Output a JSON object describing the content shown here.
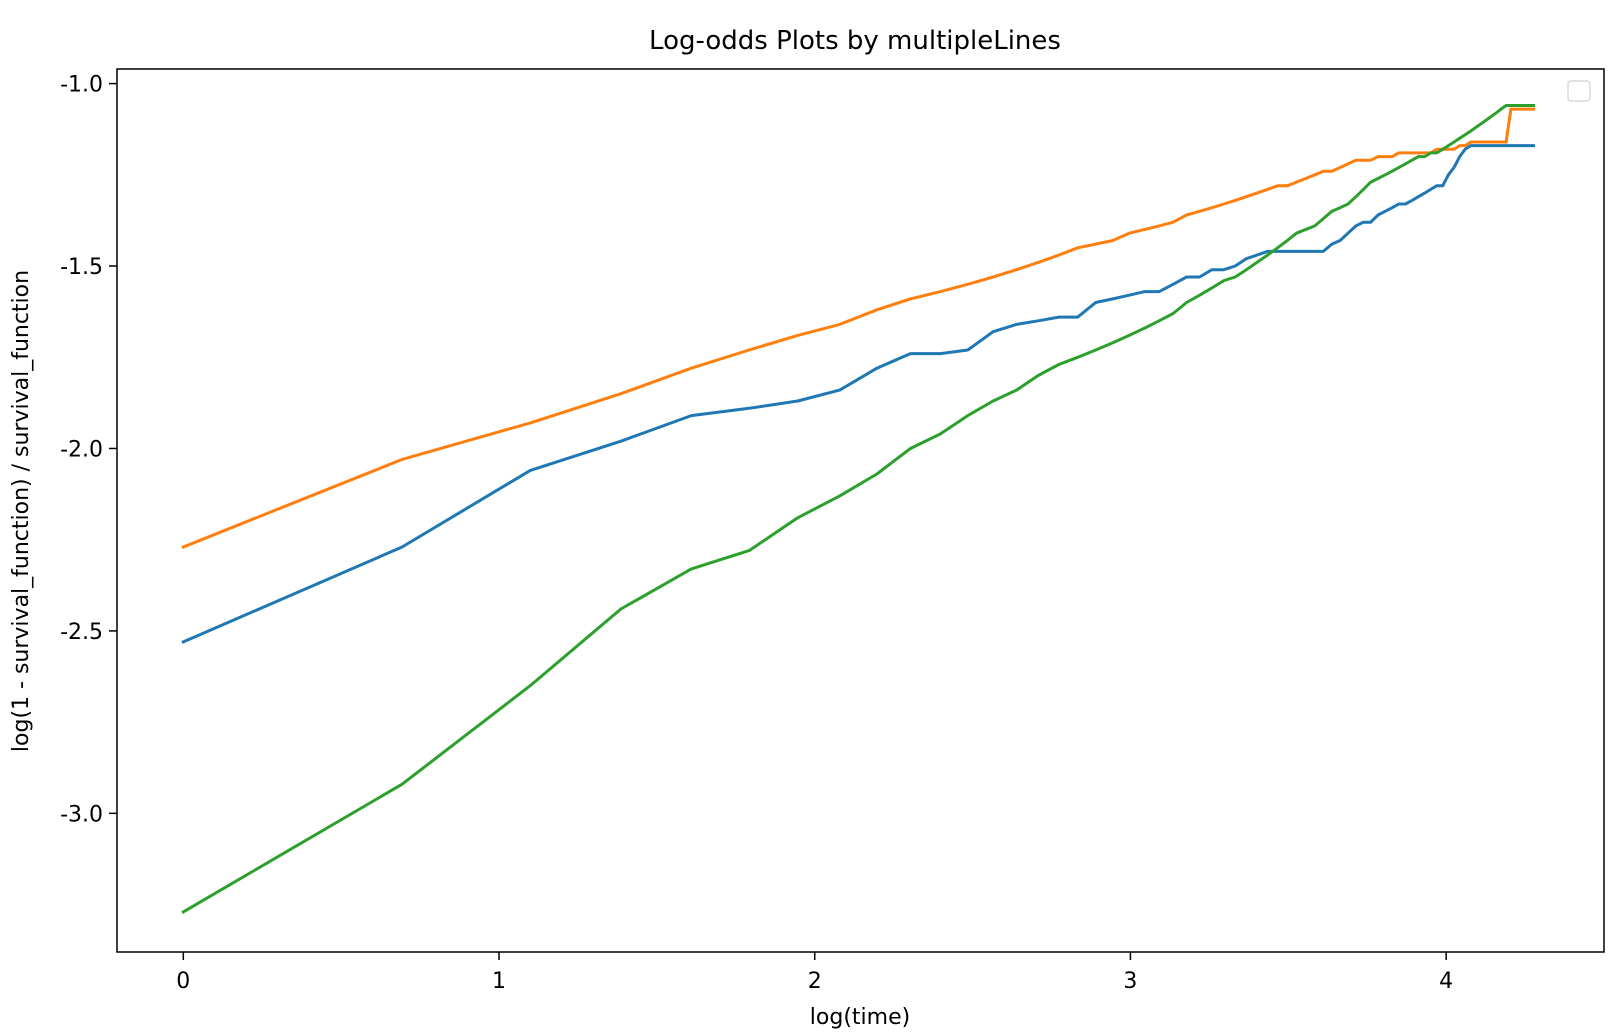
{
  "chart_data": {
    "type": "line",
    "title": "Log-odds Plots by multipleLines",
    "xlabel": "log(time)",
    "ylabel": "log(1 - survival_function) / survival_function",
    "xlim": [
      -0.21,
      4.5
    ],
    "ylim": [
      -3.38,
      -0.96
    ],
    "xticks": [
      0,
      1,
      2,
      3,
      4
    ],
    "xtick_labels": [
      "0",
      "1",
      "2",
      "3",
      "4"
    ],
    "yticks": [
      -1.0,
      -1.5,
      -2.0,
      -2.5,
      -3.0
    ],
    "ytick_labels": [
      "-1.0",
      "-1.5",
      "-2.0",
      "-2.5",
      "-3.0"
    ],
    "grid": false,
    "legend": {
      "placement": "upper right",
      "entries": []
    },
    "series": [
      {
        "color": "#1f77b4",
        "x": [
          0,
          0.693,
          1.099,
          1.386,
          1.609,
          1.792,
          1.946,
          2.079,
          2.197,
          2.303,
          2.398,
          2.485,
          2.565,
          2.639,
          2.708,
          2.773,
          2.833,
          2.89,
          2.944,
          2.996,
          3.045,
          3.091,
          3.135,
          3.178,
          3.219,
          3.258,
          3.296,
          3.332,
          3.367,
          3.401,
          3.434,
          3.466,
          3.497,
          3.526,
          3.555,
          3.584,
          3.611,
          3.638,
          3.664,
          3.689,
          3.714,
          3.738,
          3.761,
          3.784,
          3.807,
          3.829,
          3.85,
          3.871,
          3.892,
          3.912,
          3.932,
          3.951,
          3.97,
          3.989,
          4.007,
          4.025,
          4.043,
          4.06,
          4.078,
          4.094,
          4.111,
          4.127,
          4.143,
          4.159,
          4.174,
          4.19,
          4.205,
          4.22,
          4.234,
          4.248,
          4.263,
          4.277
        ],
        "y": [
          -2.53,
          -2.27,
          -2.06,
          -1.98,
          -1.91,
          -1.89,
          -1.87,
          -1.84,
          -1.78,
          -1.74,
          -1.74,
          -1.73,
          -1.68,
          -1.66,
          -1.65,
          -1.64,
          -1.64,
          -1.6,
          -1.59,
          -1.58,
          -1.57,
          -1.57,
          -1.55,
          -1.53,
          -1.53,
          -1.51,
          -1.51,
          -1.5,
          -1.48,
          -1.47,
          -1.46,
          -1.46,
          -1.46,
          -1.46,
          -1.46,
          -1.46,
          -1.46,
          -1.44,
          -1.43,
          -1.41,
          -1.39,
          -1.38,
          -1.38,
          -1.36,
          -1.35,
          -1.34,
          -1.33,
          -1.33,
          -1.32,
          -1.31,
          -1.3,
          -1.29,
          -1.28,
          -1.28,
          -1.25,
          -1.23,
          -1.2,
          -1.18,
          -1.17,
          -1.17,
          -1.17,
          -1.17,
          -1.17,
          -1.17,
          -1.17,
          -1.17,
          -1.17,
          -1.17,
          -1.17,
          -1.17,
          -1.17,
          -1.17
        ]
      },
      {
        "color": "#ff7f0e",
        "x": [
          0,
          0.693,
          1.099,
          1.386,
          1.609,
          1.792,
          1.946,
          2.079,
          2.197,
          2.303,
          2.398,
          2.485,
          2.565,
          2.639,
          2.708,
          2.773,
          2.833,
          2.89,
          2.944,
          2.996,
          3.045,
          3.091,
          3.135,
          3.178,
          3.219,
          3.258,
          3.296,
          3.332,
          3.367,
          3.401,
          3.434,
          3.466,
          3.497,
          3.526,
          3.555,
          3.584,
          3.611,
          3.638,
          3.664,
          3.689,
          3.714,
          3.738,
          3.761,
          3.784,
          3.807,
          3.829,
          3.85,
          3.871,
          3.892,
          3.912,
          3.932,
          3.951,
          3.97,
          3.989,
          4.007,
          4.025,
          4.043,
          4.06,
          4.078,
          4.094,
          4.111,
          4.127,
          4.143,
          4.159,
          4.174,
          4.19,
          4.205,
          4.22,
          4.234,
          4.248,
          4.263,
          4.277
        ],
        "y": [
          -2.27,
          -2.03,
          -1.93,
          -1.85,
          -1.78,
          -1.73,
          -1.69,
          -1.66,
          -1.62,
          -1.59,
          -1.57,
          -1.55,
          -1.53,
          -1.51,
          -1.49,
          -1.47,
          -1.45,
          -1.44,
          -1.43,
          -1.41,
          -1.4,
          -1.39,
          -1.38,
          -1.36,
          -1.35,
          -1.34,
          -1.33,
          -1.32,
          -1.31,
          -1.3,
          -1.29,
          -1.28,
          -1.28,
          -1.27,
          -1.26,
          -1.25,
          -1.24,
          -1.24,
          -1.23,
          -1.22,
          -1.21,
          -1.21,
          -1.21,
          -1.2,
          -1.2,
          -1.2,
          -1.19,
          -1.19,
          -1.19,
          -1.19,
          -1.19,
          -1.19,
          -1.18,
          -1.18,
          -1.18,
          -1.18,
          -1.17,
          -1.17,
          -1.16,
          -1.16,
          -1.16,
          -1.16,
          -1.16,
          -1.16,
          -1.16,
          -1.16,
          -1.07,
          -1.07,
          -1.07,
          -1.07,
          -1.07,
          -1.07
        ]
      },
      {
        "color": "#2ca02c",
        "x": [
          0,
          0.693,
          1.099,
          1.386,
          1.609,
          1.792,
          1.946,
          2.079,
          2.197,
          2.303,
          2.398,
          2.485,
          2.565,
          2.639,
          2.708,
          2.773,
          2.833,
          2.89,
          2.944,
          2.996,
          3.045,
          3.091,
          3.135,
          3.178,
          3.219,
          3.258,
          3.296,
          3.332,
          3.367,
          3.401,
          3.434,
          3.466,
          3.497,
          3.526,
          3.555,
          3.584,
          3.611,
          3.638,
          3.664,
          3.689,
          3.714,
          3.738,
          3.761,
          3.784,
          3.807,
          3.829,
          3.85,
          3.871,
          3.892,
          3.912,
          3.932,
          3.951,
          3.97,
          3.989,
          4.007,
          4.025,
          4.043,
          4.06,
          4.078,
          4.094,
          4.111,
          4.127,
          4.143,
          4.159,
          4.174,
          4.19,
          4.205,
          4.22,
          4.234,
          4.248,
          4.263,
          4.277
        ],
        "y": [
          -3.27,
          -2.92,
          -2.65,
          -2.44,
          -2.33,
          -2.28,
          -2.19,
          -2.13,
          -2.07,
          -2.0,
          -1.96,
          -1.91,
          -1.87,
          -1.84,
          -1.8,
          -1.77,
          -1.75,
          -1.73,
          -1.71,
          -1.69,
          -1.67,
          -1.65,
          -1.63,
          -1.6,
          -1.58,
          -1.56,
          -1.54,
          -1.53,
          -1.51,
          -1.49,
          -1.47,
          -1.45,
          -1.43,
          -1.41,
          -1.4,
          -1.39,
          -1.37,
          -1.35,
          -1.34,
          -1.33,
          -1.31,
          -1.29,
          -1.27,
          -1.26,
          -1.25,
          -1.24,
          -1.23,
          -1.22,
          -1.21,
          -1.2,
          -1.2,
          -1.19,
          -1.19,
          -1.18,
          -1.17,
          -1.16,
          -1.15,
          -1.14,
          -1.13,
          -1.12,
          -1.11,
          -1.1,
          -1.09,
          -1.08,
          -1.07,
          -1.06,
          -1.06,
          -1.06,
          -1.06,
          -1.06,
          -1.06,
          -1.06
        ]
      }
    ]
  }
}
